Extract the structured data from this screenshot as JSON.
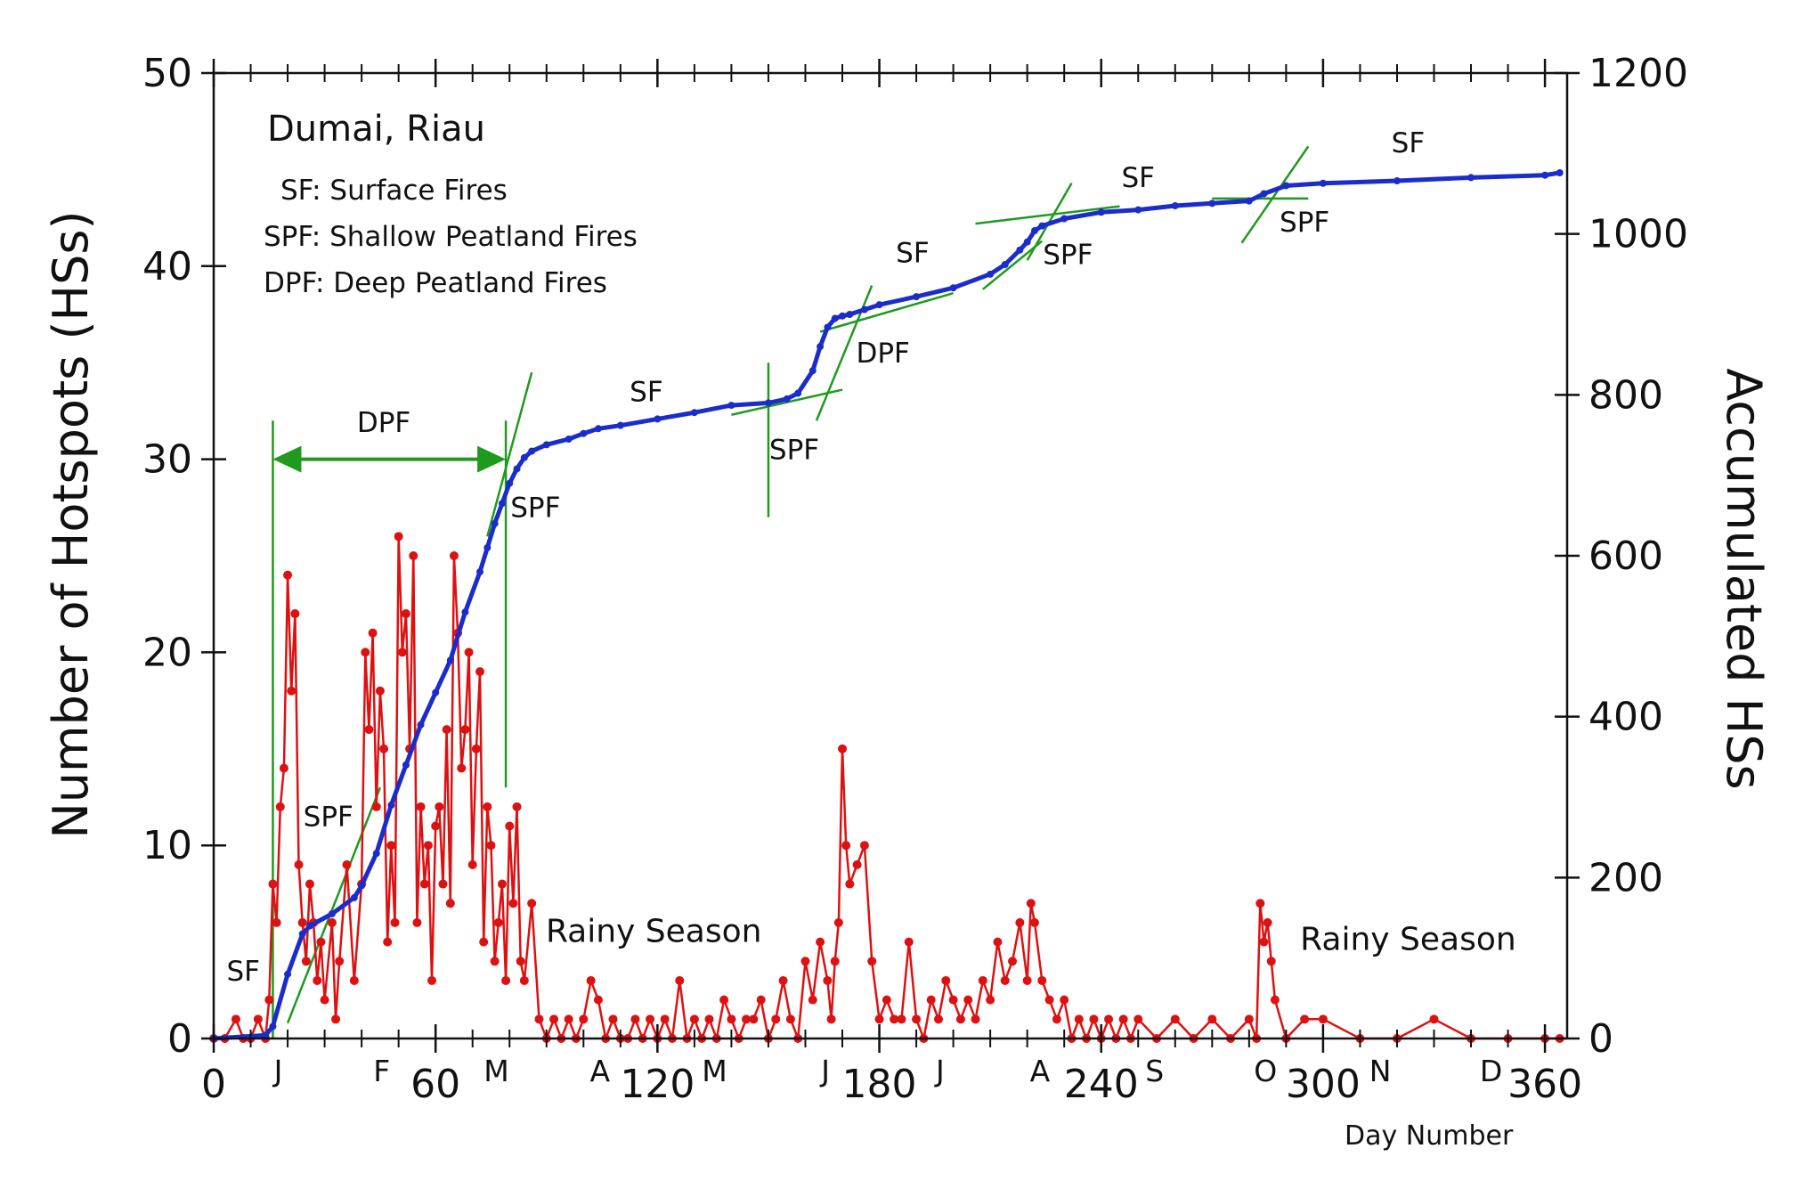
{
  "colors": {
    "daily": "#dd1111",
    "accumulated": "#1a2ccc",
    "guide": "#1f9a1f",
    "axis": "#111111"
  },
  "chart_data": {
    "type": "line",
    "title": "Dumai, Riau",
    "legend": [
      "SF: Surface Fires",
      "SPF: Shallow Peatland Fires",
      "DPF: Deep Peatland Fires"
    ],
    "xlabel": "Day Number",
    "ylabel": "Number of Hotspots (HSs)",
    "y2label": "Accumulated HSs",
    "xlim": [
      0,
      366
    ],
    "ylim": [
      0,
      50
    ],
    "y2lim": [
      0,
      1200
    ],
    "xticks": [
      0,
      60,
      120,
      180,
      240,
      300,
      360
    ],
    "xtick_labels": [
      "0",
      "60",
      "120",
      "180",
      "240",
      "300",
      "360"
    ],
    "yticks": [
      0,
      10,
      20,
      30,
      40,
      50
    ],
    "ytick_labels": [
      "0",
      "10",
      "20",
      "30",
      "40",
      "50"
    ],
    "y2ticks": [
      0,
      200,
      400,
      600,
      800,
      1000,
      1200
    ],
    "y2tick_labels": [
      "0",
      "200",
      "400",
      "600",
      "800",
      "1000",
      "1200"
    ],
    "months": [
      {
        "label": "J",
        "day": 16
      },
      {
        "label": "F",
        "day": 44
      },
      {
        "label": "M",
        "day": 75
      },
      {
        "label": "A",
        "day": 103
      },
      {
        "label": "M",
        "day": 134
      },
      {
        "label": "J",
        "day": 164
      },
      {
        "label": "J",
        "day": 195
      },
      {
        "label": "A",
        "day": 222
      },
      {
        "label": "S",
        "day": 253
      },
      {
        "label": "O",
        "day": 283
      },
      {
        "label": "N",
        "day": 314
      },
      {
        "label": "D",
        "day": 344
      }
    ],
    "series": [
      {
        "name": "Number of Hotspots",
        "axis": "left",
        "x": [
          0,
          3,
          6,
          8,
          10,
          12,
          14,
          15,
          16,
          17,
          18,
          19,
          20,
          21,
          22,
          23,
          24,
          25,
          26,
          27,
          28,
          29,
          30,
          32,
          33,
          34,
          36,
          38,
          40,
          41,
          42,
          43,
          44,
          45,
          46,
          47,
          48,
          49,
          50,
          51,
          52,
          53,
          54,
          55,
          56,
          57,
          58,
          59,
          60,
          61,
          62,
          63,
          64,
          65,
          66,
          67,
          68,
          69,
          70,
          71,
          72,
          73,
          74,
          75,
          76,
          77,
          78,
          79,
          80,
          81,
          82,
          83,
          84,
          86,
          88,
          90,
          92,
          94,
          96,
          98,
          100,
          102,
          104,
          106,
          108,
          110,
          112,
          114,
          116,
          118,
          120,
          122,
          124,
          126,
          128,
          130,
          132,
          134,
          136,
          138,
          140,
          142,
          144,
          146,
          148,
          150,
          152,
          154,
          156,
          158,
          160,
          162,
          164,
          166,
          167,
          168,
          169,
          170,
          171,
          172,
          174,
          176,
          178,
          180,
          182,
          184,
          186,
          188,
          190,
          192,
          194,
          196,
          198,
          200,
          202,
          204,
          206,
          208,
          210,
          212,
          214,
          216,
          218,
          220,
          221,
          222,
          224,
          226,
          228,
          230,
          232,
          234,
          236,
          238,
          240,
          242,
          244,
          246,
          248,
          250,
          255,
          260,
          265,
          270,
          275,
          280,
          282,
          283,
          284,
          285,
          286,
          287,
          290,
          295,
          300,
          310,
          320,
          330,
          340,
          350,
          360,
          364
        ],
        "values": [
          0,
          0,
          1,
          0,
          0,
          1,
          0,
          2,
          8,
          6,
          12,
          14,
          24,
          18,
          22,
          9,
          6,
          4,
          8,
          6,
          3,
          5,
          2,
          6,
          1,
          4,
          9,
          3,
          8,
          20,
          16,
          21,
          12,
          18,
          15,
          5,
          10,
          6,
          26,
          20,
          22,
          15,
          25,
          6,
          12,
          8,
          10,
          3,
          11,
          12,
          8,
          16,
          7,
          25,
          21,
          14,
          16,
          20,
          9,
          15,
          19,
          5,
          12,
          10,
          4,
          6,
          8,
          3,
          11,
          7,
          12,
          4,
          3,
          7,
          1,
          0,
          1,
          0,
          1,
          0,
          1,
          3,
          2,
          0,
          1,
          0,
          0,
          1,
          0,
          1,
          0,
          1,
          0,
          3,
          0,
          1,
          0,
          1,
          0,
          2,
          1,
          0,
          1,
          1,
          2,
          0,
          1,
          3,
          1,
          0,
          4,
          2,
          5,
          3,
          1,
          4,
          6,
          15,
          10,
          8,
          9,
          10,
          4,
          1,
          2,
          1,
          1,
          5,
          1,
          0,
          2,
          1,
          3,
          2,
          1,
          2,
          1,
          3,
          2,
          5,
          3,
          4,
          6,
          3,
          7,
          6,
          3,
          2,
          1,
          2,
          0,
          1,
          0,
          1,
          0,
          1,
          0,
          1,
          0,
          1,
          0,
          1,
          0,
          1,
          0,
          1,
          0,
          7,
          5,
          6,
          4,
          2,
          0,
          1,
          1,
          0,
          0,
          1,
          0,
          0,
          0,
          0
        ]
      },
      {
        "name": "Accumulated HSs",
        "axis": "right",
        "x": [
          0,
          14,
          16,
          20,
          24,
          26,
          32,
          38,
          40,
          44,
          48,
          52,
          56,
          60,
          64,
          68,
          72,
          74,
          76,
          78,
          80,
          82,
          84,
          86,
          90,
          96,
          100,
          104,
          110,
          120,
          130,
          140,
          150,
          155,
          158,
          162,
          164,
          166,
          168,
          170,
          172,
          176,
          180,
          190,
          200,
          210,
          214,
          218,
          220,
          222,
          224,
          230,
          240,
          250,
          260,
          270,
          280,
          284,
          290,
          300,
          320,
          340,
          360,
          364
        ],
        "values": [
          0,
          4,
          15,
          80,
          130,
          140,
          155,
          175,
          190,
          230,
          290,
          340,
          390,
          430,
          470,
          530,
          580,
          610,
          640,
          665,
          690,
          708,
          722,
          730,
          738,
          745,
          752,
          758,
          762,
          770,
          778,
          787,
          790,
          795,
          802,
          830,
          860,
          884,
          895,
          898,
          900,
          906,
          912,
          922,
          933,
          950,
          962,
          980,
          990,
          1004,
          1010,
          1019,
          1027,
          1030,
          1035,
          1038,
          1041,
          1050,
          1060,
          1063,
          1066,
          1070,
          1073,
          1076
        ]
      }
    ],
    "annotations": [
      {
        "text": "SF",
        "x": 8,
        "y": 3
      },
      {
        "text": "SPF",
        "x": 31,
        "y": 11
      },
      {
        "text": "DPF",
        "x": 46,
        "y": 31.4
      },
      {
        "text": "SPF",
        "x": 87,
        "y": 27
      },
      {
        "text": "SF",
        "x": 117,
        "y": 33
      },
      {
        "text": "SPF",
        "x": 157,
        "y": 30
      },
      {
        "text": "DPF",
        "x": 181,
        "y": 35
      },
      {
        "text": "SF",
        "x": 189,
        "y": 40.2
      },
      {
        "text": "SPF",
        "x": 231,
        "y": 40.1
      },
      {
        "text": "SF",
        "x": 250,
        "y": 44.1
      },
      {
        "text": "SPF",
        "x": 295,
        "y": 41.8
      },
      {
        "text": "SF",
        "x": 323,
        "y": 45.9
      },
      {
        "text": "Rainy Season",
        "x": 119,
        "y": 5,
        "kind": "season"
      },
      {
        "text": "Rainy Season",
        "x": 323,
        "y": 4.6,
        "kind": "season"
      }
    ]
  }
}
